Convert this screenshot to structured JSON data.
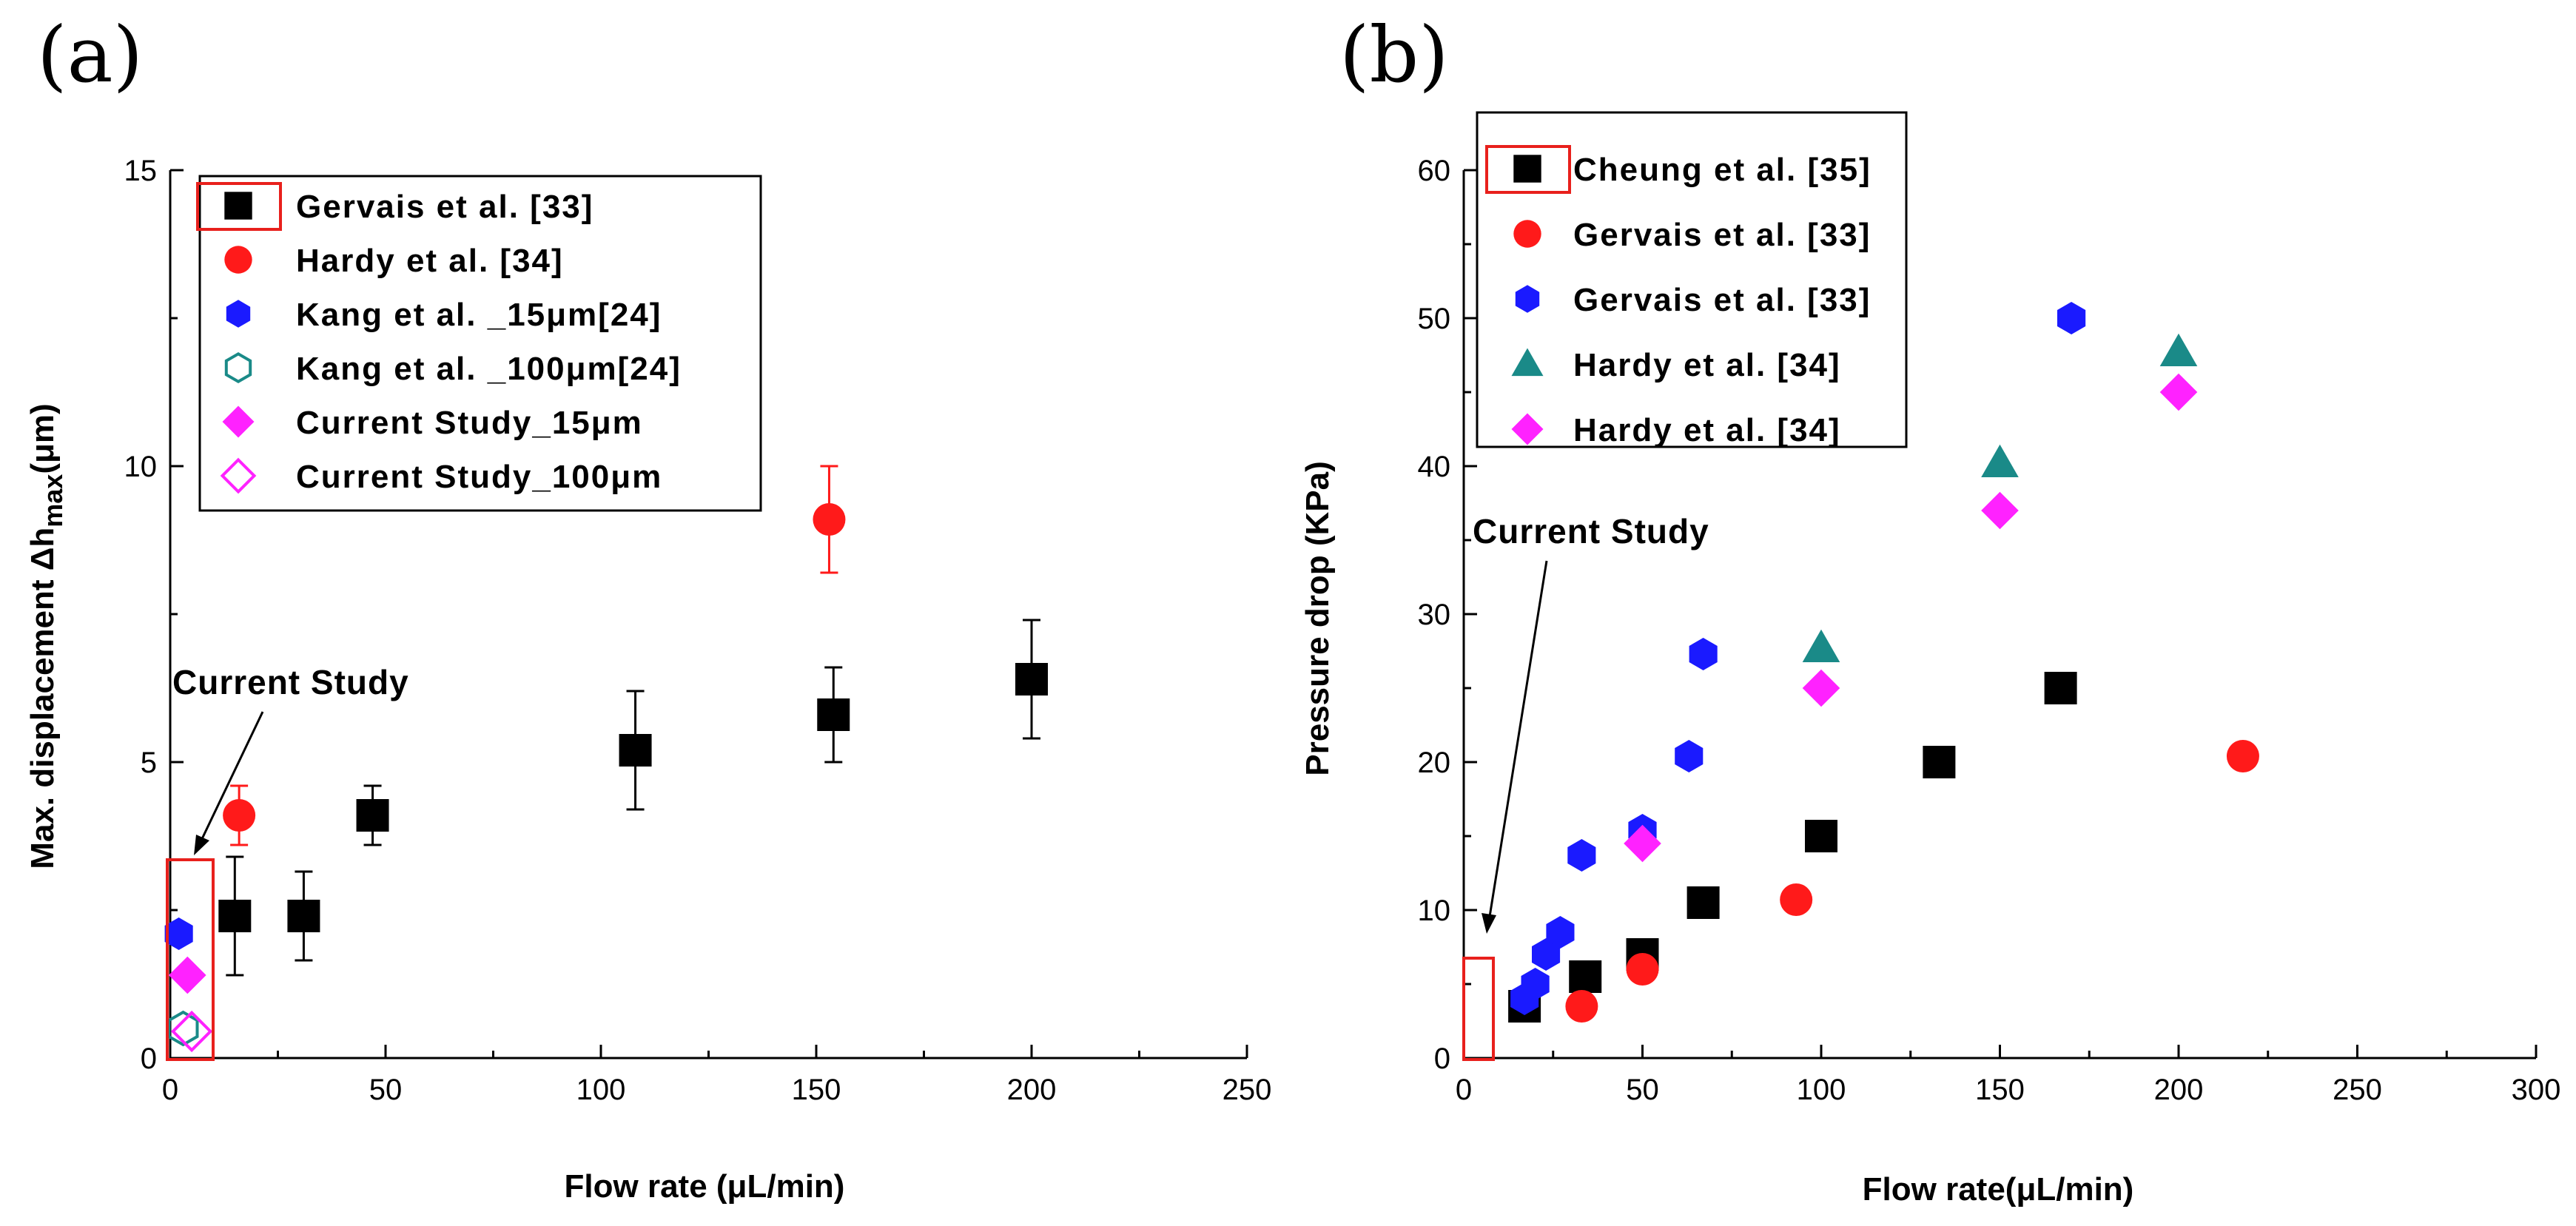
{
  "colors": {
    "black": "#000000",
    "red": "#ff1a1a",
    "blue": "#1a1aff",
    "teal": "#1a8a88",
    "magenta": "#ff22ff",
    "highlight": "#e8201c"
  },
  "chart_data": [
    {
      "type": "scatter",
      "panel_label": "(a)",
      "xlabel": "Flow rate (μL/min)",
      "ylabel": "Max. displacement Δh",
      "ylabel_sub": "max",
      "ylabel_unit": "(μm)",
      "xlim": [
        0,
        250
      ],
      "ylim": [
        0,
        15
      ],
      "xticks": [
        0,
        50,
        100,
        150,
        200,
        250
      ],
      "yticks": [
        0,
        5,
        10,
        15
      ],
      "annotation": "Current Study",
      "legend_position": "top-left",
      "series": [
        {
          "name": "Gervais et al. [33]",
          "marker": "square",
          "color": "#000000",
          "x": [
            15,
            31,
            47,
            108,
            154,
            200
          ],
          "y": [
            2.4,
            2.4,
            4.1,
            5.2,
            5.8,
            6.4
          ],
          "err": [
            1.0,
            0.75,
            0.5,
            1.0,
            0.8,
            1.0
          ]
        },
        {
          "name": "Hardy et al. [34]",
          "marker": "circle",
          "color": "#ff1a1a",
          "x": [
            16,
            153
          ],
          "y": [
            4.1,
            9.1
          ],
          "err": [
            0.5,
            0.9
          ]
        },
        {
          "name": "Kang et al. _15μm[24]",
          "marker": "hexagon",
          "color": "#1a1aff",
          "x": [
            2
          ],
          "y": [
            2.1
          ]
        },
        {
          "name": "Kang et al. _100μm[24]",
          "marker": "hexagon-open",
          "color": "#1a8a88",
          "x": [
            3
          ],
          "y": [
            0.5
          ]
        },
        {
          "name": "Current Study_15μm",
          "marker": "diamond",
          "color": "#ff22ff",
          "x": [
            4
          ],
          "y": [
            1.4
          ]
        },
        {
          "name": "Current Study_100μm",
          "marker": "diamond-open",
          "color": "#ff22ff",
          "x": [
            5
          ],
          "y": [
            0.45
          ]
        }
      ]
    },
    {
      "type": "scatter",
      "panel_label": "(b)",
      "xlabel": "Flow rate(μL/min)",
      "ylabel": "Pressure drop (KPa)",
      "xlim": [
        0,
        300
      ],
      "ylim": [
        0,
        60
      ],
      "xticks": [
        0,
        50,
        100,
        150,
        200,
        250,
        300
      ],
      "yticks": [
        0,
        10,
        20,
        30,
        40,
        50,
        60
      ],
      "annotation": "Current Study",
      "legend_position": "top-left",
      "series": [
        {
          "name": "Cheung et al. [35]",
          "marker": "square",
          "color": "#000000",
          "x": [
            17,
            34,
            50,
            67,
            100,
            133,
            167
          ],
          "y": [
            3.5,
            5.5,
            7,
            10.5,
            15,
            20,
            25
          ]
        },
        {
          "name": "Gervais et al. [33]",
          "marker": "circle",
          "color": "#ff1a1a",
          "x": [
            33,
            50,
            93,
            218
          ],
          "y": [
            3.5,
            6,
            10.7,
            20.4
          ]
        },
        {
          "name": "Gervais et al. [33]",
          "marker": "hexagon",
          "color": "#1a1aff",
          "x": [
            17,
            20,
            23,
            27,
            33,
            50,
            63,
            67,
            170
          ],
          "y": [
            4,
            5,
            7,
            8.5,
            13.7,
            15.4,
            20.4,
            27.3,
            50
          ]
        },
        {
          "name": "Hardy et al. [34]",
          "marker": "triangle",
          "color": "#1a8a88",
          "x": [
            100,
            150,
            200
          ],
          "y": [
            27.7,
            40.2,
            47.7
          ]
        },
        {
          "name": "Hardy et al. [34]",
          "marker": "diamond",
          "color": "#ff22ff",
          "x": [
            50,
            100,
            150,
            200
          ],
          "y": [
            14.5,
            25,
            37,
            45
          ]
        }
      ]
    }
  ]
}
